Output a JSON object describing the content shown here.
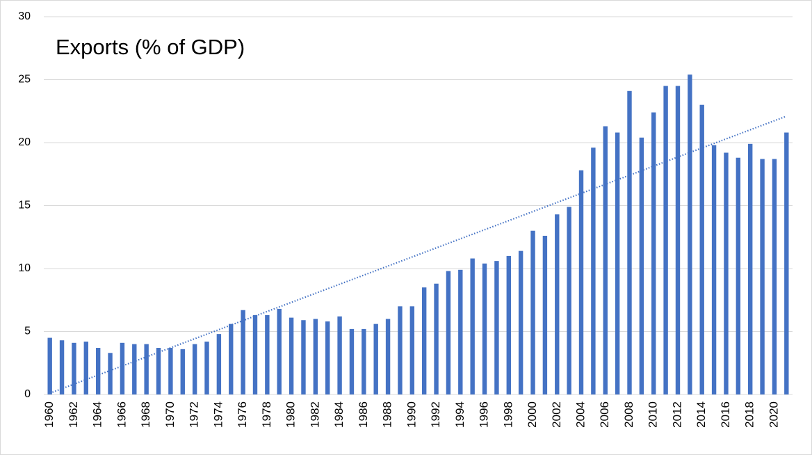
{
  "chart_data": {
    "type": "bar",
    "title": "Exports (% of GDP)",
    "categories": [
      "1960",
      null,
      "1962",
      null,
      "1964",
      null,
      "1966",
      null,
      "1968",
      null,
      "1970",
      null,
      "1972",
      null,
      "1974",
      null,
      "1976",
      null,
      "1978",
      null,
      "1980",
      null,
      "1982",
      null,
      "1984",
      null,
      "1986",
      null,
      "1988",
      null,
      "1990",
      null,
      "1992",
      null,
      "1994",
      null,
      "1996",
      null,
      "1998",
      null,
      "2000",
      null,
      "2002",
      null,
      "2004",
      null,
      "2006",
      null,
      "2008",
      null,
      "2010",
      null,
      "2012",
      null,
      "2014",
      null,
      "2016",
      null,
      "2018",
      null,
      "2020",
      null
    ],
    "values": [
      4.5,
      4.3,
      4.1,
      4.2,
      3.7,
      3.3,
      4.1,
      4.0,
      4.0,
      3.7,
      3.7,
      3.6,
      4.0,
      4.2,
      4.8,
      5.6,
      6.7,
      6.3,
      6.3,
      6.8,
      6.1,
      5.9,
      6.0,
      5.8,
      6.2,
      5.2,
      5.2,
      5.6,
      6.0,
      7.0,
      7.0,
      8.5,
      8.8,
      9.8,
      9.9,
      10.8,
      10.4,
      10.6,
      11.0,
      11.4,
      13.0,
      12.6,
      14.3,
      14.9,
      17.8,
      19.6,
      21.3,
      20.8,
      24.1,
      20.4,
      22.4,
      24.5,
      24.5,
      25.4,
      23.0,
      19.8,
      19.2,
      18.8,
      19.9,
      18.7,
      18.7,
      20.8
    ],
    "color": "#4472c4",
    "trendline": {
      "values": [
        0.1,
        22.1
      ],
      "color": "#4472c4",
      "style": "dotted"
    },
    "ylim": [
      0,
      30
    ],
    "yticks": [
      0,
      5,
      10,
      15,
      20,
      25,
      30
    ],
    "grid": true
  }
}
